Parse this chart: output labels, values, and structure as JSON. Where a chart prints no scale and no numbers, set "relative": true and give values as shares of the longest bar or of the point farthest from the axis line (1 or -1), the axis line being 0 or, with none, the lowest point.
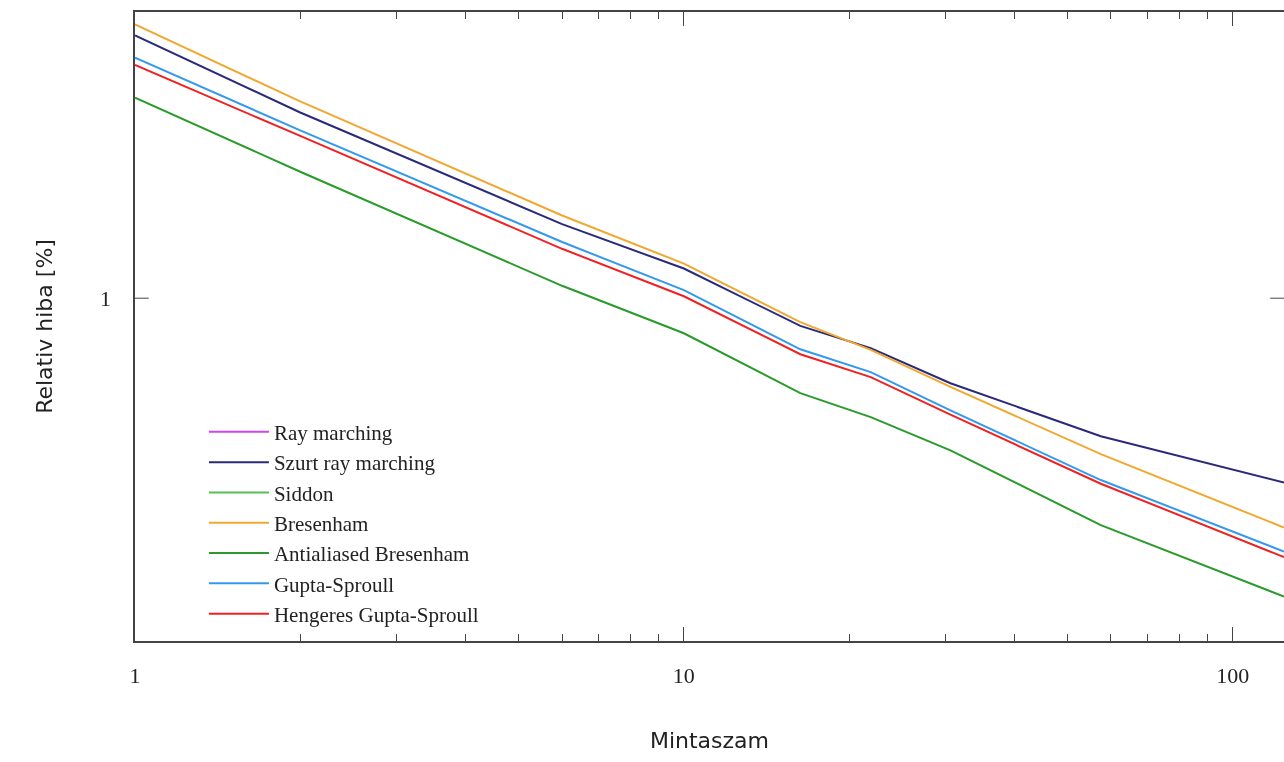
{
  "chart_data": {
    "type": "line",
    "xlabel": "Mintaszam",
    "ylabel": "Relativ hiba [%]",
    "log": "x",
    "relative": true,
    "x": [
      1,
      2,
      6,
      10,
      16.3,
      21.9,
      30.6,
      57.5,
      124
    ],
    "xlim": [
      1,
      124
    ],
    "xticks": [
      1,
      {
        "value": 2,
        "label": null
      },
      {
        "value": 3,
        "label": null
      },
      {
        "value": 4,
        "label": null
      },
      {
        "value": 5,
        "label": null
      },
      {
        "value": 6,
        "label": null
      },
      {
        "value": 7,
        "label": null
      },
      {
        "value": 8,
        "label": null
      },
      {
        "value": 9,
        "label": null
      },
      10,
      {
        "value": 20,
        "label": null
      },
      {
        "value": 30,
        "label": null
      },
      {
        "value": 40,
        "label": null
      },
      {
        "value": 50,
        "label": null
      },
      {
        "value": 60,
        "label": null
      },
      {
        "value": 70,
        "label": null
      },
      {
        "value": 80,
        "label": null
      },
      {
        "value": 90,
        "label": null
      },
      100
    ],
    "annotations": [
      "1"
    ],
    "legend": "bottom left",
    "marker": "none",
    "line_style": "solid",
    "series": [
      {
        "name": "Ray marching",
        "color": "#cc44ee",
        "values": [
          null,
          null,
          null,
          null,
          null,
          null,
          null,
          null,
          null
        ]
      },
      {
        "name": "Szurt ray marching",
        "color": "#2a2a7a",
        "values": [
          0.982,
          0.857,
          0.676,
          0.604,
          0.511,
          0.475,
          0.418,
          0.332,
          0.257
        ]
      },
      {
        "name": "Siddon",
        "color": "#55c055",
        "values": [
          null,
          null,
          null,
          null,
          null,
          null,
          null,
          null,
          null
        ]
      },
      {
        "name": "Bresenham",
        "color": "#f0a830",
        "values": [
          1.0,
          0.875,
          0.69,
          0.612,
          0.517,
          0.472,
          0.412,
          0.303,
          0.184
        ]
      },
      {
        "name": "Antialiased Bresenham",
        "color": "#2a9a2a",
        "values": [
          0.881,
          0.761,
          0.576,
          0.499,
          0.402,
          0.363,
          0.309,
          0.188,
          0.072
        ]
      },
      {
        "name": "Gupta-Sproull",
        "color": "#3399ee",
        "values": [
          0.946,
          0.828,
          0.647,
          0.569,
          0.473,
          0.436,
          0.374,
          0.261,
          0.145
        ]
      },
      {
        "name": "Hengeres Gupta-Sproull",
        "color": "#ee2222",
        "values": [
          0.934,
          0.819,
          0.636,
          0.559,
          0.465,
          0.428,
          0.367,
          0.255,
          0.136
        ]
      }
    ]
  }
}
